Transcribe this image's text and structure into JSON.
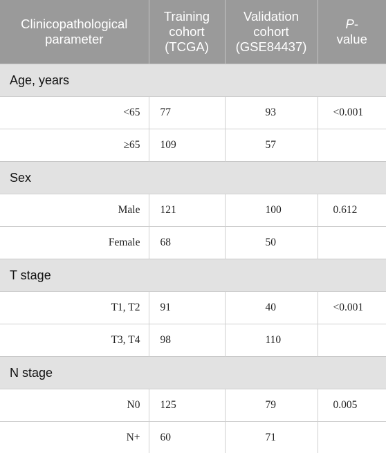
{
  "table": {
    "headers": {
      "parameter_line1": "Clinicopathological",
      "parameter_line2": "parameter",
      "training_line1": "Training",
      "training_line2": "cohort",
      "training_line3": "(TCGA)",
      "validation_line1": "Validation",
      "validation_line2": "cohort",
      "validation_line3": "(GSE84437)",
      "pvalue_italic": "P",
      "pvalue_dash": "-",
      "pvalue_line2": "value"
    },
    "sections": [
      {
        "title": "Age, years",
        "rows": [
          {
            "label": "<65",
            "training": "77",
            "validation": "93",
            "p": "<0.001"
          },
          {
            "label": "≥65",
            "training": "109",
            "validation": "57",
            "p": ""
          }
        ]
      },
      {
        "title": "Sex",
        "rows": [
          {
            "label": "Male",
            "training": "121",
            "validation": "100",
            "p": "0.612"
          },
          {
            "label": "Female",
            "training": "68",
            "validation": "50",
            "p": ""
          }
        ]
      },
      {
        "title": "T stage",
        "rows": [
          {
            "label": "T1, T2",
            "training": "91",
            "validation": "40",
            "p": "<0.001"
          },
          {
            "label": "T3, T4",
            "training": "98",
            "validation": "110",
            "p": ""
          }
        ]
      },
      {
        "title": "N stage",
        "rows": [
          {
            "label": "N0",
            "training": "125",
            "validation": "79",
            "p": "0.005"
          },
          {
            "label": "N+",
            "training": "60",
            "validation": "71",
            "p": ""
          }
        ]
      }
    ]
  }
}
